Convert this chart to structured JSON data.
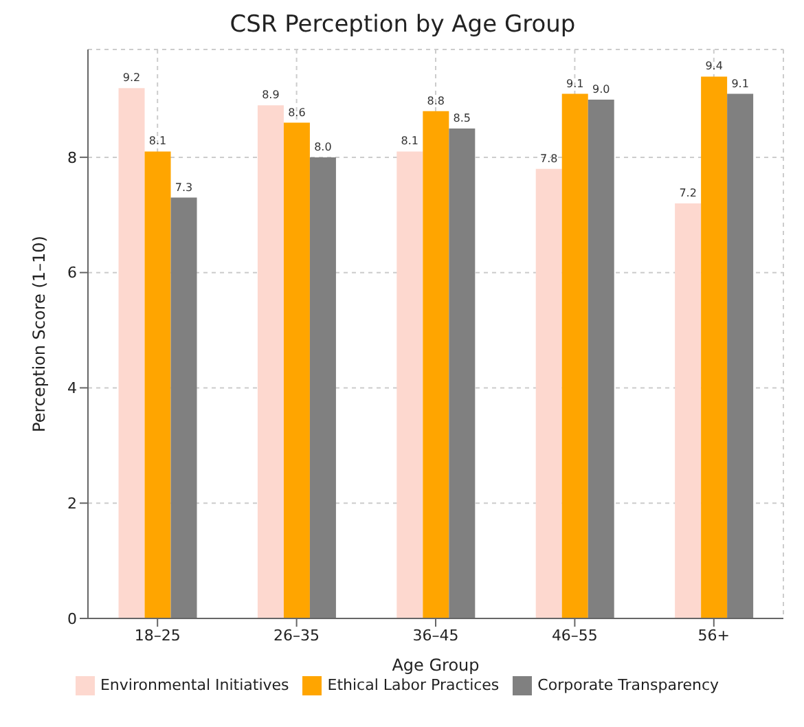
{
  "chart_data": {
    "type": "bar",
    "title": "CSR Perception by Age Group",
    "xlabel": "Age Group",
    "ylabel": "Perception Score (1–10)",
    "categories": [
      "18–25",
      "26–35",
      "36–45",
      "46–55",
      "56+"
    ],
    "series": [
      {
        "name": "Environmental Initiatives",
        "color": "#fdd8cf",
        "values": [
          9.2,
          8.9,
          8.1,
          7.8,
          7.2
        ],
        "value_labels": [
          "9.2",
          "8.9",
          "8.1",
          "7.8",
          "7.2"
        ]
      },
      {
        "name": "Ethical Labor Practices",
        "color": "#ffa500",
        "values": [
          8.1,
          8.6,
          8.8,
          9.1,
          9.4
        ],
        "value_labels": [
          "8.1",
          "8.6",
          "8.8",
          "9.1",
          "9.4"
        ]
      },
      {
        "name": "Corporate Transparency",
        "color": "#808080",
        "values": [
          7.3,
          8.0,
          8.5,
          9.0,
          9.1
        ],
        "value_labels": [
          "7.3",
          "8.0",
          "8.5",
          "9.0",
          "9.1"
        ]
      }
    ],
    "ylim": [
      0,
      9.87
    ],
    "yticks": [
      0,
      2,
      4,
      6,
      8
    ],
    "grid": true,
    "legend": "bottom"
  }
}
